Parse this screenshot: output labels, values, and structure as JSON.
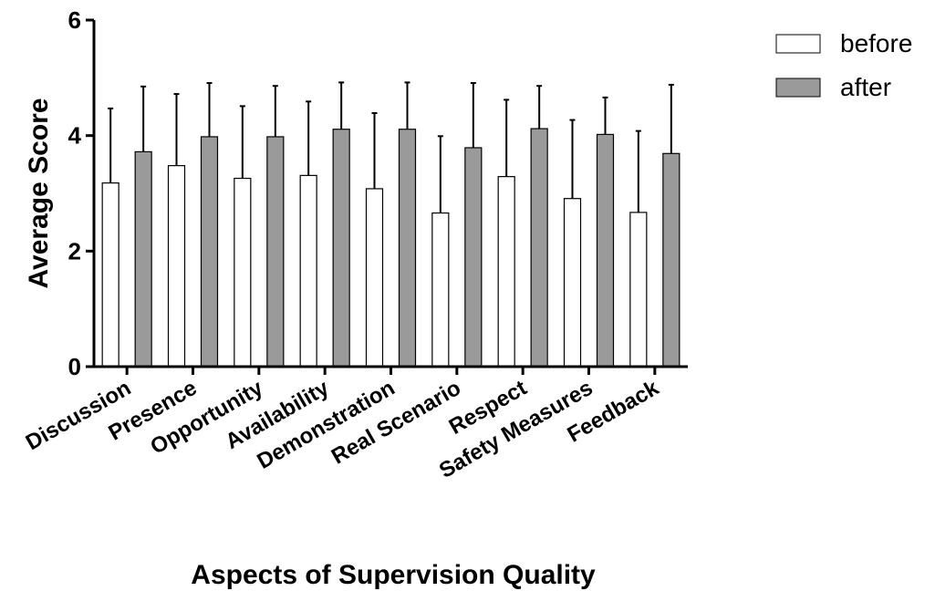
{
  "chart_data": {
    "type": "bar",
    "xlabel": "Aspects of Supervision Quality",
    "ylabel": "Average Score",
    "ylim": [
      0,
      6
    ],
    "yticks": [
      "0",
      "2",
      "4",
      "6"
    ],
    "categories": [
      "Discussion",
      "Presence",
      "Opportunity",
      "Availability",
      "Demonstration",
      "Real Scenario",
      "Respect",
      "Safety Measures",
      "Feedback"
    ],
    "series": [
      {
        "name": "before",
        "color": "#ffffff",
        "values": [
          3.18,
          3.48,
          3.26,
          3.31,
          3.08,
          2.66,
          3.29,
          2.91,
          2.67
        ],
        "error_upper": [
          4.47,
          4.72,
          4.51,
          4.59,
          4.39,
          3.99,
          4.62,
          4.27,
          4.08
        ]
      },
      {
        "name": "after",
        "color": "#9a9a9a",
        "values": [
          3.72,
          3.98,
          3.98,
          4.11,
          4.11,
          3.79,
          4.12,
          4.02,
          3.69
        ],
        "error_upper": [
          4.85,
          4.91,
          4.86,
          4.92,
          4.92,
          4.91,
          4.86,
          4.66,
          4.88
        ]
      }
    ],
    "legend_position": "top-right"
  }
}
